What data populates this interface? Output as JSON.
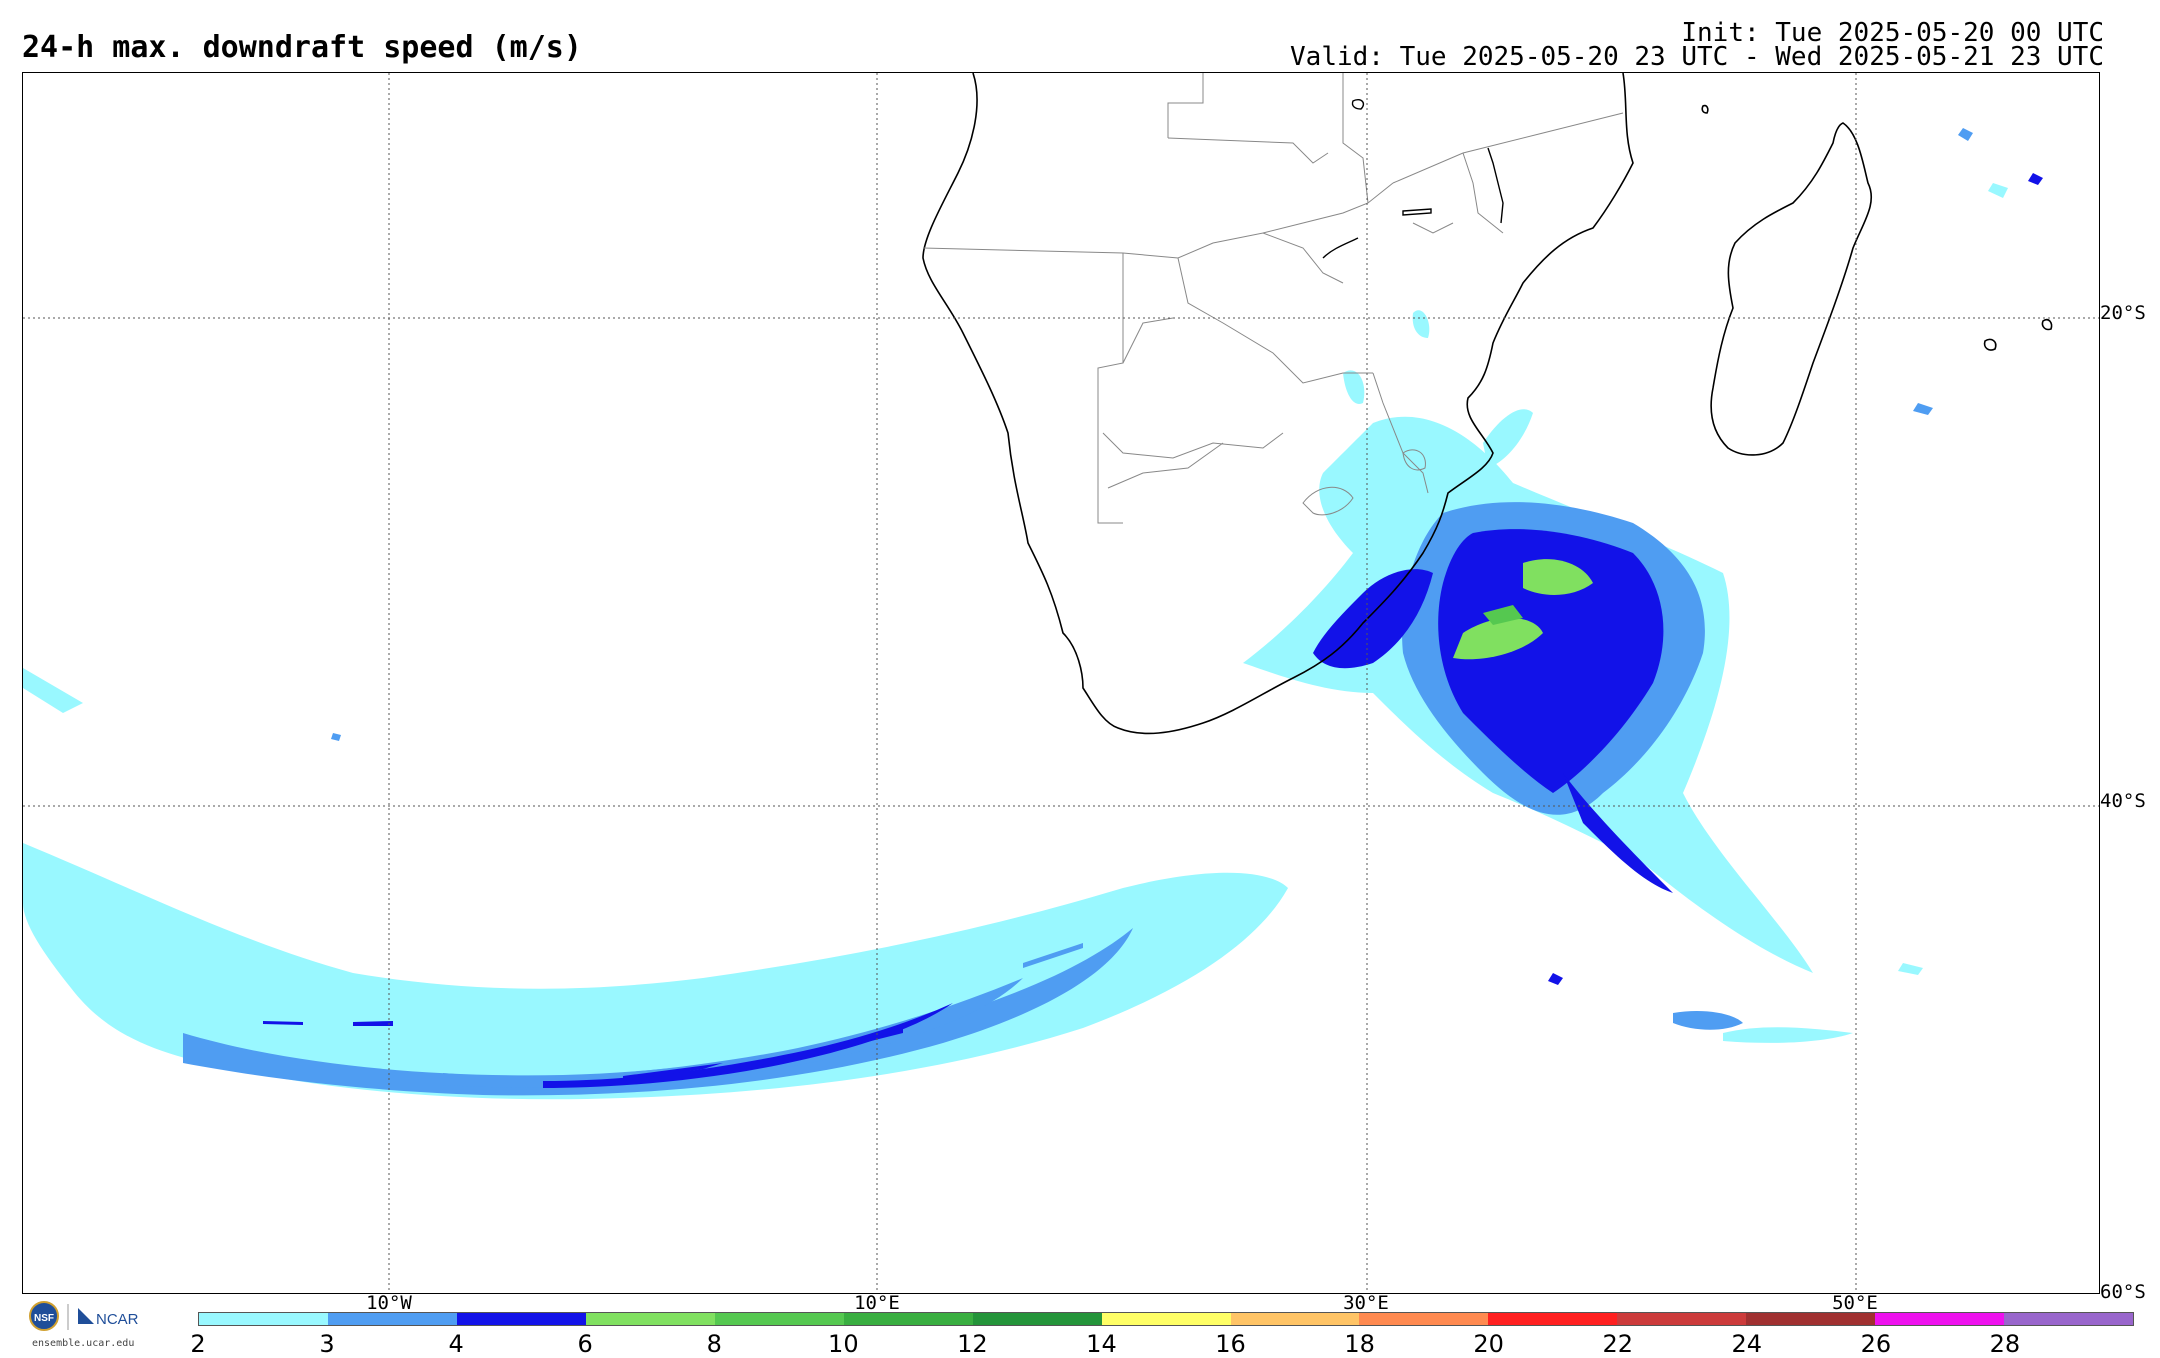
{
  "header": {
    "title": "24-h max. downdraft speed (m/s)",
    "init": "Init: Tue 2025-05-20 00 UTC",
    "valid": "Valid: Tue 2025-05-20 23 UTC - Wed 2025-05-21 23 UTC"
  },
  "map": {
    "lat_labels": [
      "20°S",
      "40°S",
      "60°S"
    ],
    "lon_labels": [
      "10°W",
      "10°E",
      "30°E",
      "50°E"
    ]
  },
  "colorbar": {
    "ticks": [
      "2",
      "3",
      "4",
      "6",
      "8",
      "10",
      "12",
      "14",
      "16",
      "18",
      "20",
      "22",
      "24",
      "26",
      "28"
    ],
    "colors": [
      "#99f8ff",
      "#4f9df2",
      "#1212e8",
      "#80e060",
      "#55c850",
      "#39ae40",
      "#24943a",
      "#ffff66",
      "#ffc466",
      "#ff8a50",
      "#ff2020",
      "#cc3b3b",
      "#a03030",
      "#ee11ee",
      "#9966cc"
    ]
  },
  "logo": {
    "nsf": "NSF",
    "ncar": "NCAR",
    "url": "ensemble.ucar.edu"
  }
}
